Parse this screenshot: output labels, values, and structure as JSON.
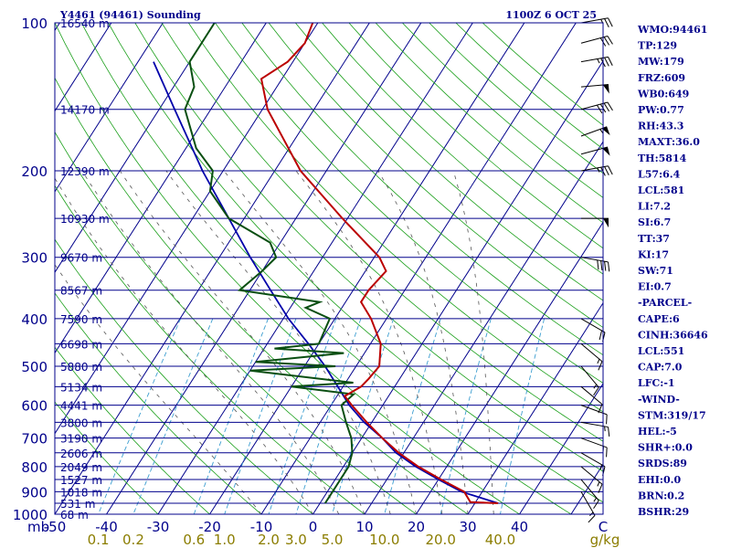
{
  "header": {
    "station": "Y4461 (94461) Sounding",
    "time": "1100Z  6 OCT 25"
  },
  "indices": [
    "WMO:94461",
    "TP:129",
    "MW:179",
    "FRZ:609",
    "WB0:649",
    "PW:0.77",
    "RH:43.3",
    "MAXT:36.0",
    "TH:5814",
    "L57:6.4",
    "LCL:581",
    "LI:7.2",
    "SI:6.7",
    "TT:37",
    "KI:17",
    "SW:71",
    "EI:0.7",
    "-PARCEL-",
    "CAPE:6",
    "CINH:36646",
    "LCL:551",
    "CAP:7.0",
    "LFC:-1",
    "-WIND-",
    "STM:319/17",
    "HEL:-5",
    "SHR+:0.0",
    "SRDS:89",
    "EHI:0.0",
    "BRN:0.2",
    "BSHR:29"
  ],
  "colors": {
    "isobar": "#00008b",
    "isotherm": "#00008b",
    "dry_adiabat": "#1a9f1a",
    "mixing_ratio": "#3c9ed0",
    "moist_adiabat": "#555555",
    "temperature": "#bb0000",
    "dewpoint": "#0a4f12",
    "parcel": "#0000aa",
    "wind_barb": "#000000",
    "text": "#00008b",
    "mixing_label": "#8b7d00"
  },
  "chart_data": {
    "type": "skew-t",
    "xlabel": "C",
    "ylabel": "mb",
    "units_mixing_ratio": "g/kg",
    "pressure_ticks": [
      {
        "p": 100,
        "label": "100"
      },
      {
        "p": 200,
        "label": "200"
      },
      {
        "p": 300,
        "label": "300"
      },
      {
        "p": 400,
        "label": "400"
      },
      {
        "p": 500,
        "label": "500"
      },
      {
        "p": 600,
        "label": "600"
      },
      {
        "p": 700,
        "label": "700"
      },
      {
        "p": 800,
        "label": "800"
      },
      {
        "p": 900,
        "label": "900"
      },
      {
        "p": 1000,
        "label": "1000"
      }
    ],
    "temperature_ticks": [
      {
        "t": -50,
        "label": "-50"
      },
      {
        "t": -40,
        "label": "-40"
      },
      {
        "t": -30,
        "label": "-30"
      },
      {
        "t": -20,
        "label": "-20"
      },
      {
        "t": -10,
        "label": "-10"
      },
      {
        "t": 0,
        "label": "0"
      },
      {
        "t": 10,
        "label": "10"
      },
      {
        "t": 20,
        "label": "20"
      },
      {
        "t": 30,
        "label": "30"
      },
      {
        "t": 40,
        "label": "40"
      }
    ],
    "mixing_ratio_ticks": [
      {
        "w": 0.1,
        "label": "0.1"
      },
      {
        "w": 0.2,
        "label": "0.2"
      },
      {
        "w": 0.6,
        "label": "0.6"
      },
      {
        "w": 1.0,
        "label": "1.0"
      },
      {
        "w": 2.0,
        "label": "2.0"
      },
      {
        "w": 3.0,
        "label": "3.0"
      },
      {
        "w": 5.0,
        "label": "5.0"
      },
      {
        "w": 10.0,
        "label": "10.0"
      },
      {
        "w": 20.0,
        "label": "20.0"
      },
      {
        "w": 40.0,
        "label": "40.0"
      }
    ],
    "height_levels": [
      {
        "p": 100,
        "label": "16540 m"
      },
      {
        "p": 150,
        "label": "14170 m"
      },
      {
        "p": 200,
        "label": "12390 m"
      },
      {
        "p": 250,
        "label": "10930 m"
      },
      {
        "p": 300,
        "label": "9670 m"
      },
      {
        "p": 350,
        "label": "8567 m"
      },
      {
        "p": 400,
        "label": "7590 m"
      },
      {
        "p": 450,
        "label": "6698 m"
      },
      {
        "p": 500,
        "label": "5880 m"
      },
      {
        "p": 550,
        "label": "5134 m"
      },
      {
        "p": 600,
        "label": "4441 m"
      },
      {
        "p": 650,
        "label": "3800 m"
      },
      {
        "p": 700,
        "label": "3190 m"
      },
      {
        "p": 750,
        "label": "2606 m"
      },
      {
        "p": 800,
        "label": "2049 m"
      },
      {
        "p": 850,
        "label": "1527 m"
      },
      {
        "p": 900,
        "label": "1018 m"
      },
      {
        "p": 950,
        "label": "531 m"
      },
      {
        "p": 1000,
        "label": "68 m"
      }
    ],
    "temperature_profile": [
      {
        "p": 950,
        "t": 34.5
      },
      {
        "p": 945,
        "t": 29.0
      },
      {
        "p": 900,
        "t": 26.5
      },
      {
        "p": 850,
        "t": 20.5
      },
      {
        "p": 800,
        "t": 14.5
      },
      {
        "p": 750,
        "t": 9.0
      },
      {
        "p": 700,
        "t": 4.0
      },
      {
        "p": 650,
        "t": -1.0
      },
      {
        "p": 600,
        "t": -6.0
      },
      {
        "p": 575,
        "t": -8.5
      },
      {
        "p": 550,
        "t": -6.5
      },
      {
        "p": 530,
        "t": -6.0
      },
      {
        "p": 500,
        "t": -5.5
      },
      {
        "p": 450,
        "t": -8.0
      },
      {
        "p": 400,
        "t": -13.0
      },
      {
        "p": 370,
        "t": -17.0
      },
      {
        "p": 350,
        "t": -17.0
      },
      {
        "p": 320,
        "t": -16.0
      },
      {
        "p": 300,
        "t": -19.0
      },
      {
        "p": 250,
        "t": -31.0
      },
      {
        "p": 200,
        "t": -45.0
      },
      {
        "p": 175,
        "t": -51.5
      },
      {
        "p": 150,
        "t": -59.0
      },
      {
        "p": 130,
        "t": -64.0
      },
      {
        "p": 120,
        "t": -61.0
      },
      {
        "p": 110,
        "t": -60.0
      },
      {
        "p": 100,
        "t": -61.0
      }
    ],
    "dewpoint_profile": [
      {
        "p": 950,
        "td": 1.0
      },
      {
        "p": 900,
        "td": 1.0
      },
      {
        "p": 850,
        "td": 1.0
      },
      {
        "p": 800,
        "td": 1.0
      },
      {
        "p": 750,
        "td": 0.0
      },
      {
        "p": 700,
        "td": -2.0
      },
      {
        "p": 650,
        "td": -5.0
      },
      {
        "p": 600,
        "td": -8.0
      },
      {
        "p": 570,
        "td": -7.0
      },
      {
        "p": 550,
        "td": -20.0
      },
      {
        "p": 540,
        "td": -8.5
      },
      {
        "p": 510,
        "td": -30.0
      },
      {
        "p": 500,
        "td": -14.0
      },
      {
        "p": 490,
        "td": -30.0
      },
      {
        "p": 470,
        "td": -14.0
      },
      {
        "p": 460,
        "td": -28.0
      },
      {
        "p": 450,
        "td": -20.0
      },
      {
        "p": 400,
        "td": -21.0
      },
      {
        "p": 380,
        "td": -27.0
      },
      {
        "p": 370,
        "td": -25.0
      },
      {
        "p": 350,
        "td": -42.0
      },
      {
        "p": 320,
        "td": -40.0
      },
      {
        "p": 300,
        "td": -39.0
      },
      {
        "p": 280,
        "td": -42.0
      },
      {
        "p": 250,
        "td": -53.0
      },
      {
        "p": 220,
        "td": -60.0
      },
      {
        "p": 200,
        "td": -62.0
      },
      {
        "p": 180,
        "td": -68.0
      },
      {
        "p": 150,
        "td": -75.0
      },
      {
        "p": 135,
        "td": -76.0
      },
      {
        "p": 120,
        "td": -80.0
      },
      {
        "p": 100,
        "td": -80.0
      }
    ],
    "parcel_profile": [
      {
        "p": 950,
        "t": 34.5
      },
      {
        "p": 900,
        "t": 26.0
      },
      {
        "p": 850,
        "t": 20.0
      },
      {
        "p": 800,
        "t": 14.0
      },
      {
        "p": 750,
        "t": 8.5
      },
      {
        "p": 700,
        "t": 4.0
      },
      {
        "p": 650,
        "t": -1.5
      },
      {
        "p": 600,
        "t": -6.5
      },
      {
        "p": 550,
        "t": -11.0
      },
      {
        "p": 500,
        "t": -16.0
      },
      {
        "p": 450,
        "t": -22.0
      },
      {
        "p": 400,
        "t": -29.0
      },
      {
        "p": 350,
        "t": -36.0
      },
      {
        "p": 300,
        "t": -44.0
      },
      {
        "p": 250,
        "t": -53.0
      },
      {
        "p": 200,
        "t": -64.0
      },
      {
        "p": 150,
        "t": -77.0
      },
      {
        "p": 120,
        "t": -87.0
      }
    ],
    "wind_barbs": [
      {
        "p": 100,
        "dir": 80,
        "spd": 25
      },
      {
        "p": 110,
        "dir": 75,
        "spd": 30
      },
      {
        "p": 120,
        "dir": 80,
        "spd": 35
      },
      {
        "p": 135,
        "dir": 85,
        "spd": 50
      },
      {
        "p": 150,
        "dir": 75,
        "spd": 40
      },
      {
        "p": 170,
        "dir": 70,
        "spd": 55
      },
      {
        "p": 185,
        "dir": 75,
        "spd": 50
      },
      {
        "p": 200,
        "dir": 80,
        "spd": 35
      },
      {
        "p": 250,
        "dir": 90,
        "spd": 50
      },
      {
        "p": 300,
        "dir": 100,
        "spd": 40
      },
      {
        "p": 400,
        "dir": 120,
        "spd": 20
      },
      {
        "p": 450,
        "dir": 130,
        "spd": 15
      },
      {
        "p": 500,
        "dir": 140,
        "spd": 15
      },
      {
        "p": 550,
        "dir": 130,
        "spd": 10
      },
      {
        "p": 600,
        "dir": 110,
        "spd": 10
      },
      {
        "p": 650,
        "dir": 100,
        "spd": 15
      },
      {
        "p": 700,
        "dir": 110,
        "spd": 15
      },
      {
        "p": 750,
        "dir": 120,
        "spd": 15
      },
      {
        "p": 800,
        "dir": 130,
        "spd": 15
      },
      {
        "p": 850,
        "dir": 140,
        "spd": 15
      },
      {
        "p": 900,
        "dir": 150,
        "spd": 15
      }
    ]
  }
}
